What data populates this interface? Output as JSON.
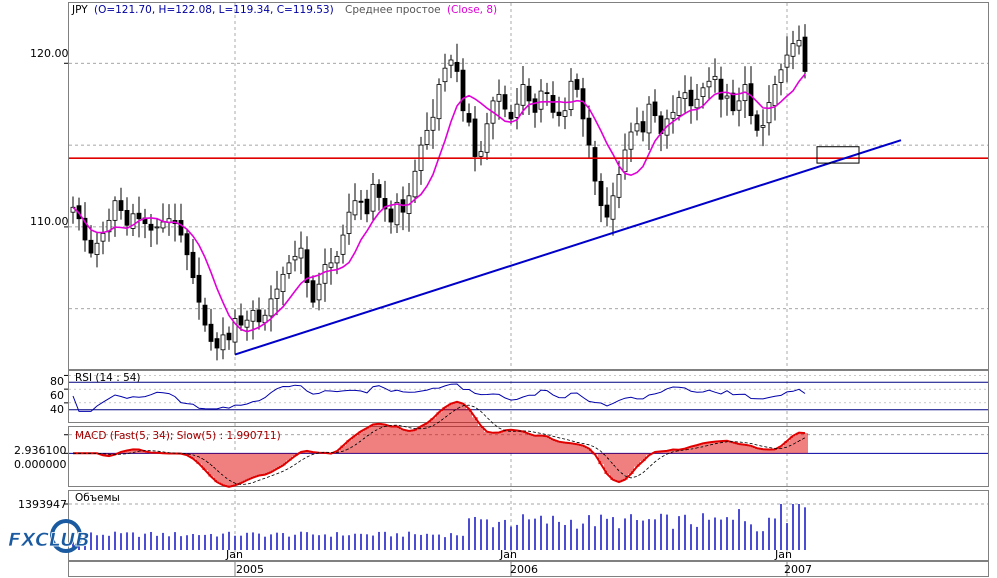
{
  "chart_data": {
    "type": "candlestick",
    "symbol": "JPY",
    "ohlc_label": {
      "prefix": "JPY",
      "values": "(O=121.70, H=122.08, L=119.34, C=119.53)",
      "indicator_name": "Среднее простое",
      "indicator_params": "(Close, 8)"
    },
    "y_ticks": [
      "120.00",
      "110.00"
    ],
    "x_month_labels": [
      "Jan",
      "Jan",
      "Jan"
    ],
    "x_year_labels": [
      "2005",
      "2006",
      "2007"
    ],
    "price_ylim": [
      101.5,
      123.5
    ],
    "weekly_close": [
      111.2,
      110.5,
      109.2,
      108.4,
      109.0,
      109.6,
      110.4,
      111.6,
      111.0,
      110.1,
      110.8,
      110.5,
      110.2,
      109.8,
      110.0,
      110.3,
      110.5,
      110.2,
      109.5,
      108.3,
      106.9,
      105.4,
      104.0,
      103.0,
      102.6,
      103.4,
      103.1,
      104.4,
      104.0,
      104.3,
      104.9,
      104.2,
      104.6,
      105.6,
      106.2,
      107.1,
      107.8,
      108.2,
      108.7,
      106.6,
      105.4,
      106.5,
      107.7,
      107.8,
      108.2,
      109.5,
      110.9,
      111.6,
      111.5,
      110.8,
      112.6,
      111.8,
      111.1,
      110.3,
      111.5,
      110.9,
      111.9,
      113.4,
      115.0,
      115.9,
      116.7,
      118.7,
      119.7,
      120.2,
      119.5,
      117.1,
      116.4,
      114.3,
      114.6,
      116.3,
      117.7,
      118.1,
      117.2,
      116.6,
      117.5,
      118.7,
      117.7,
      117.0,
      118.3,
      118.2,
      117.0,
      116.8,
      117.1,
      118.9,
      118.4,
      116.6,
      115.0,
      112.8,
      111.3,
      110.6,
      111.9,
      113.2,
      114.7,
      115.8,
      116.3,
      115.8,
      117.5,
      116.8,
      115.7,
      116.6,
      117.0,
      117.9,
      118.2,
      117.4,
      117.8,
      118.5,
      118.9,
      119.2,
      117.8,
      118.0,
      117.1,
      117.7,
      118.7,
      116.8,
      115.9,
      116.2,
      117.6,
      118.7,
      119.6,
      120.5,
      121.2,
      121.4,
      119.5
    ],
    "sma_period": 8,
    "trendline": {
      "x_start_week": 27,
      "y_start": 102.2,
      "x_end_week": 138,
      "y_end": 115.3
    },
    "horizontal_level": 114.2,
    "annotation_box": {
      "x_from_week": 124,
      "x_to_week": 131,
      "y_from": 113.9,
      "y_to": 114.9
    },
    "rsi": {
      "label": "RSI (14 : 54)",
      "ticks": [
        "80",
        "60",
        "40"
      ],
      "levels": [
        70,
        30
      ],
      "ylim": [
        15,
        85
      ]
    },
    "macd": {
      "label": "MACD (Fast(5, 34); Slow(5) : 1.990711)",
      "ticks": [
        "2.936100",
        "0.000000"
      ],
      "ylim": [
        -5,
        4
      ]
    },
    "volume": {
      "label": "Объемы",
      "ticks": [
        "1393947"
      ],
      "ymax": 1393947
    },
    "logo": "FXCLUB",
    "colors": {
      "candle": "#000000",
      "sma": "#e000d8",
      "trendline": "#0000c8",
      "level": "#e00000",
      "rsi": "#0000aa",
      "macd_hist": "#e00000",
      "volume": "#0000c0"
    }
  }
}
